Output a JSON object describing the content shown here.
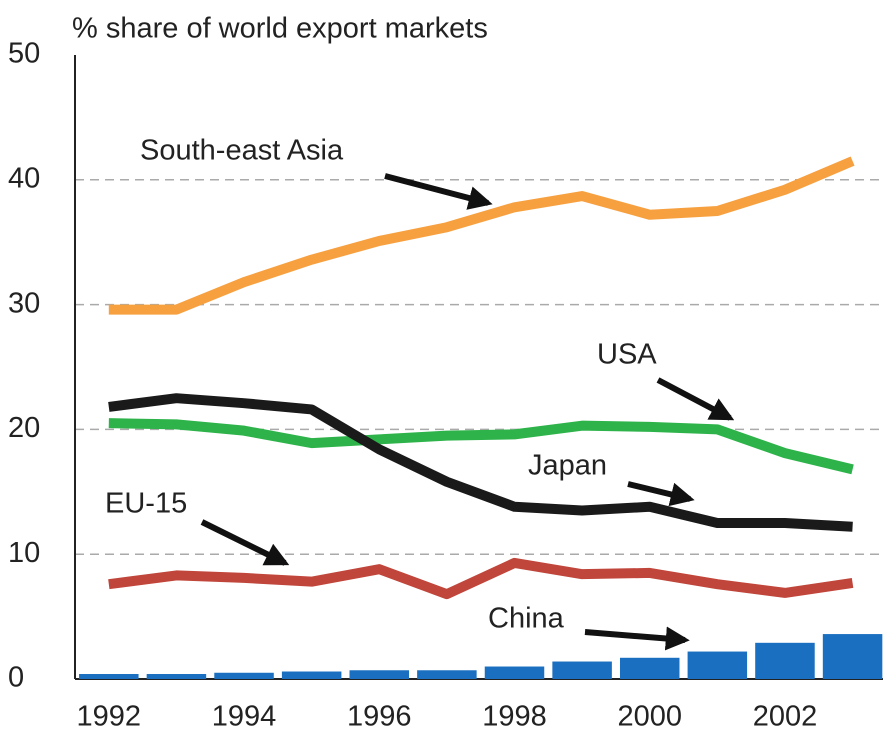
{
  "chart_data": {
    "type": "line",
    "title": "% share of world export markets",
    "x": [
      1992,
      1993,
      1994,
      1995,
      1996,
      1997,
      1998,
      1999,
      2000,
      2001,
      2002,
      2003
    ],
    "xlim": [
      1991.5,
      2003.45
    ],
    "xticks": [
      1992,
      1994,
      1996,
      1998,
      2000,
      2002
    ],
    "ylim": [
      0,
      50
    ],
    "yticks": [
      0,
      10,
      20,
      30,
      40,
      50
    ],
    "grid": true,
    "series": [
      {
        "name": "China",
        "type": "bar",
        "color": "#1a6fc0",
        "values": [
          0.4,
          0.4,
          0.5,
          0.6,
          0.7,
          0.7,
          1.0,
          1.4,
          1.7,
          2.2,
          2.9,
          3.6
        ]
      },
      {
        "name": "EU-15",
        "type": "line",
        "color": "#c0453a",
        "values": [
          7.6,
          8.3,
          8.1,
          7.8,
          8.8,
          6.8,
          9.3,
          8.4,
          8.5,
          7.6,
          6.9,
          7.7
        ]
      },
      {
        "name": "USA",
        "type": "line",
        "color": "#2db34a",
        "values": [
          20.5,
          20.4,
          19.9,
          18.9,
          19.2,
          19.5,
          19.6,
          20.3,
          20.2,
          20.0,
          18.1,
          16.8
        ]
      },
      {
        "name": "Japan",
        "type": "line",
        "color": "#1a1a1a",
        "values": [
          21.8,
          22.5,
          22.1,
          21.6,
          18.4,
          15.8,
          13.8,
          13.5,
          13.8,
          12.5,
          12.5,
          12.2
        ]
      },
      {
        "name": "South-east Asia",
        "type": "line",
        "color": "#f7a040",
        "values": [
          29.6,
          29.6,
          31.8,
          33.6,
          35.1,
          36.2,
          37.8,
          38.7,
          37.2,
          37.5,
          39.2,
          41.5
        ]
      }
    ]
  }
}
